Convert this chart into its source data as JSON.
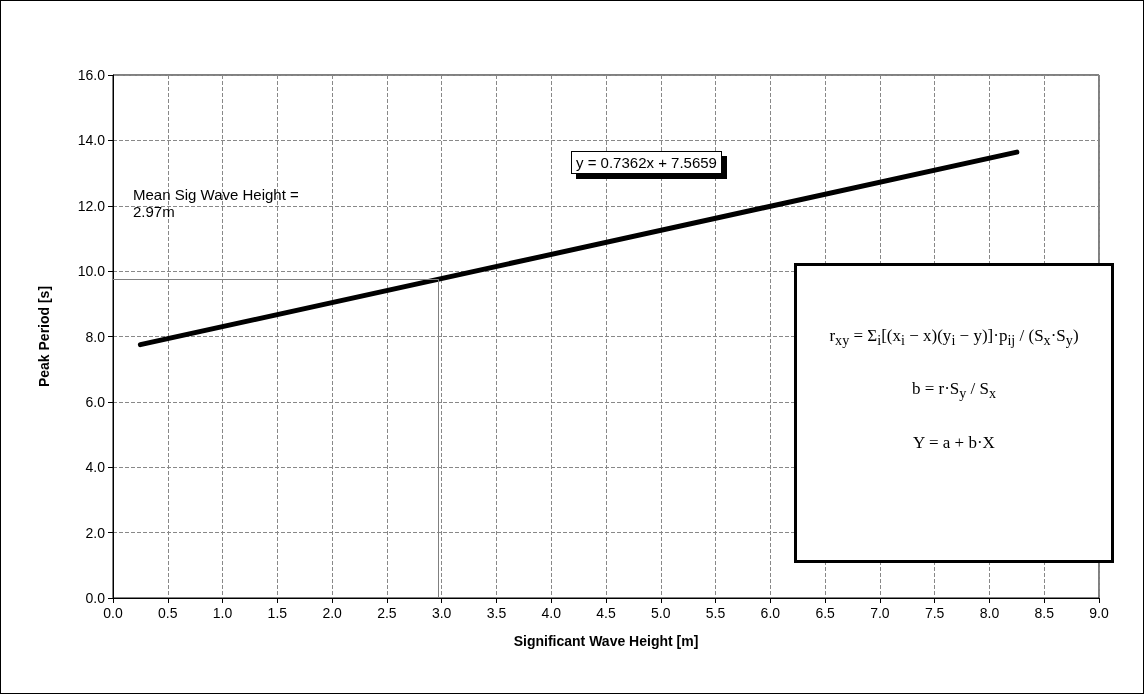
{
  "chart_data": {
    "type": "line",
    "xlabel": "Significant Wave Height [m]",
    "ylabel": "Peak Period [s]",
    "x": [
      0.25,
      8.25
    ],
    "series": [
      {
        "color": "#000000",
        "values": [
          7.75,
          13.64
        ]
      }
    ],
    "xlim": [
      0,
      9
    ],
    "ylim": [
      0,
      16
    ],
    "xticks": [
      {
        "value": 0,
        "label": "0.0"
      },
      {
        "value": 0.5,
        "label": "0.5"
      },
      {
        "value": 1,
        "label": "1.0"
      },
      {
        "value": 1.5,
        "label": "1.5"
      },
      {
        "value": 2,
        "label": "2.0"
      },
      {
        "value": 2.5,
        "label": "2.5"
      },
      {
        "value": 3,
        "label": "3.0"
      },
      {
        "value": 3.5,
        "label": "3.5"
      },
      {
        "value": 4,
        "label": "4.0"
      },
      {
        "value": 4.5,
        "label": "4.5"
      },
      {
        "value": 5,
        "label": "5.0"
      },
      {
        "value": 5.5,
        "label": "5.5"
      },
      {
        "value": 6,
        "label": "6.0"
      },
      {
        "value": 6.5,
        "label": "6.5"
      },
      {
        "value": 7,
        "label": "7.0"
      },
      {
        "value": 7.5,
        "label": "7.5"
      },
      {
        "value": 8,
        "label": "8.0"
      },
      {
        "value": 8.5,
        "label": "8.5"
      },
      {
        "value": 9,
        "label": "9.0"
      }
    ],
    "yticks": [
      {
        "value": 0,
        "label": "0.0"
      },
      {
        "value": 2,
        "label": "2.0"
      },
      {
        "value": 4,
        "label": "4.0"
      },
      {
        "value": 6,
        "label": "6.0"
      },
      {
        "value": 8,
        "label": "8.0"
      },
      {
        "value": 10,
        "label": "10.0"
      },
      {
        "value": 12,
        "label": "12.0"
      },
      {
        "value": 14,
        "label": "14.0"
      },
      {
        "value": 16,
        "label": "16.0"
      }
    ],
    "grid": true,
    "marker": "none",
    "line_style": "solid",
    "ref_lines": [
      {
        "axis": "x",
        "value": 2.97,
        "color": "#808080"
      },
      {
        "axis": "y",
        "value": 9.75,
        "color": "#808080"
      }
    ],
    "annotations": [
      "Mean Sig Wave Height =\n2.97m",
      "y = 0.7362x + 7.5659",
      "r$_{xy}$ = Σ$_{i}$[(x$_{i}$ − x)(y$_{i}$ − y)]·p$_{ij}$ / (S$_{x}$·S$_{y}$)",
      "b = r·S$_{y}$ / S$_{x}$",
      "Y = a + b·X"
    ]
  }
}
